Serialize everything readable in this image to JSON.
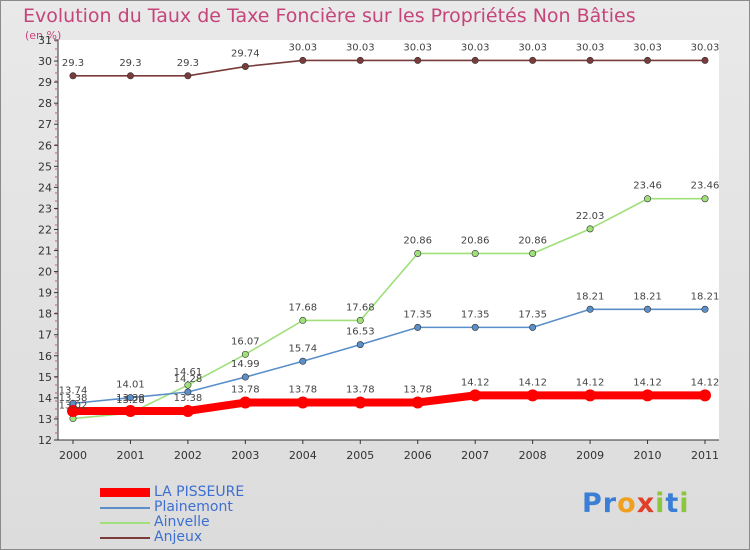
{
  "chart_data": {
    "type": "line",
    "title": "Evolution du Taux de Taxe Foncière sur les Propriétés Non Bâties",
    "subtitle": "(en %)",
    "x": [
      "2000",
      "2001",
      "2002",
      "2003",
      "2004",
      "2005",
      "2006",
      "2007",
      "2008",
      "2009",
      "2010",
      "2011"
    ],
    "ylim": [
      12,
      31
    ],
    "yticks": [
      12,
      13,
      14,
      15,
      16,
      17,
      18,
      19,
      20,
      21,
      22,
      23,
      24,
      25,
      26,
      27,
      28,
      29,
      30,
      31
    ],
    "grid": false,
    "legend_position": "bottom-left",
    "series": [
      {
        "name": "LA PISSEURE",
        "color": "#ff0000",
        "values": [
          13.38,
          13.38,
          13.38,
          13.78,
          13.78,
          13.78,
          13.78,
          14.12,
          14.12,
          14.12,
          14.12,
          14.12
        ]
      },
      {
        "name": "Plainemont",
        "color": "#5b8fc9",
        "values": [
          13.74,
          14.01,
          14.28,
          14.99,
          15.74,
          16.53,
          17.35,
          17.35,
          17.35,
          18.21,
          18.21,
          18.21
        ]
      },
      {
        "name": "Ainvelle",
        "color": "#9fe07a",
        "values": [
          13.02,
          13.28,
          14.61,
          16.07,
          17.68,
          17.68,
          20.86,
          20.86,
          20.86,
          22.03,
          23.46,
          23.46
        ]
      },
      {
        "name": "Anjeux",
        "color": "#7a3b3b",
        "values": [
          29.3,
          29.3,
          29.3,
          29.74,
          30.03,
          30.03,
          30.03,
          30.03,
          30.03,
          30.03,
          30.03,
          30.03
        ]
      }
    ],
    "data_labels": {
      "LA PISSEURE": [
        "13.38",
        "13.38",
        "13.38",
        "13.78",
        "13.78",
        "13.78",
        "13.78",
        "14.12",
        "14.12",
        "14.12",
        "14.12",
        "14.12"
      ],
      "Plainemont": [
        "13.74",
        "14.01",
        "14.28",
        "14.99",
        "15.74",
        "16.53",
        "17.35",
        "17.35",
        "17.35",
        "18.21",
        "18.21",
        "18.21"
      ],
      "Ainvelle": [
        "13.02",
        "13.28",
        "14.61",
        "16.07",
        "17.68",
        "17.68",
        "20.86",
        "20.86",
        "20.86",
        "22.03",
        "23.46",
        "23.46"
      ],
      "Anjeux": [
        "29.3",
        "29.3",
        "29.3",
        "29.74",
        "30.03",
        "30.03",
        "30.03",
        "30.03",
        "30.03",
        "30.03",
        "30.03",
        "30.03"
      ]
    }
  },
  "legend": {
    "items": [
      {
        "label": "LA PISSEURE",
        "color": "#ff0000"
      },
      {
        "label": "Plainemont",
        "color": "#5b8fc9"
      },
      {
        "label": "Ainvelle",
        "color": "#9fe07a"
      },
      {
        "label": "Anjeux",
        "color": "#7a3b3b"
      }
    ]
  },
  "logo": {
    "letters": [
      "P",
      "r",
      "o",
      "x",
      "i",
      "t",
      "i"
    ],
    "colors": [
      "#3a7fd5",
      "#3a7fd5",
      "#f0a020",
      "#e0402a",
      "#8cc63f",
      "#3a7fd5",
      "#8cc63f"
    ]
  }
}
